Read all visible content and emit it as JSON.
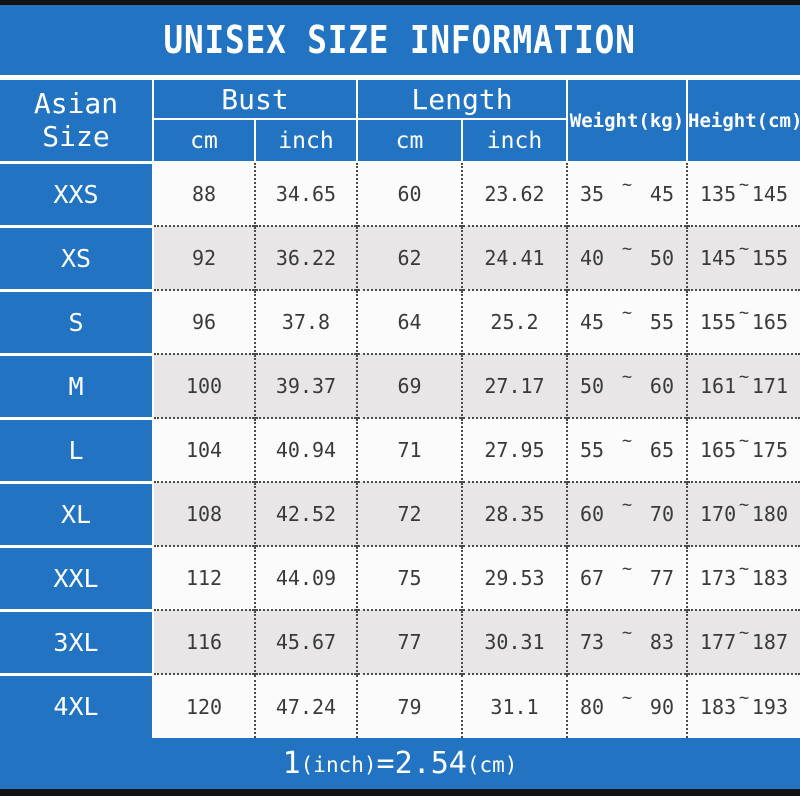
{
  "chart_data": {
    "type": "table",
    "title": "UNISEX SIZE INFORMATION",
    "header": {
      "asian_size": "Asian Size",
      "bust": "Bust",
      "length": "Length",
      "cm": "cm",
      "inch": "inch",
      "weight_kg": "Weight(kg)",
      "height_cm": "Height(cm)"
    },
    "range_separator": "~",
    "rows": [
      {
        "size": "XXS",
        "bust_cm": "88",
        "bust_inch": "34.65",
        "length_cm": "60",
        "length_inch": "23.62",
        "weight_min": "35",
        "weight_max": "45",
        "height_min": "135",
        "height_max": "145"
      },
      {
        "size": "XS",
        "bust_cm": "92",
        "bust_inch": "36.22",
        "length_cm": "62",
        "length_inch": "24.41",
        "weight_min": "40",
        "weight_max": "50",
        "height_min": "145",
        "height_max": "155"
      },
      {
        "size": "S",
        "bust_cm": "96",
        "bust_inch": "37.8",
        "length_cm": "64",
        "length_inch": "25.2",
        "weight_min": "45",
        "weight_max": "55",
        "height_min": "155",
        "height_max": "165"
      },
      {
        "size": "M",
        "bust_cm": "100",
        "bust_inch": "39.37",
        "length_cm": "69",
        "length_inch": "27.17",
        "weight_min": "50",
        "weight_max": "60",
        "height_min": "161",
        "height_max": "171"
      },
      {
        "size": "L",
        "bust_cm": "104",
        "bust_inch": "40.94",
        "length_cm": "71",
        "length_inch": "27.95",
        "weight_min": "55",
        "weight_max": "65",
        "height_min": "165",
        "height_max": "175"
      },
      {
        "size": "XL",
        "bust_cm": "108",
        "bust_inch": "42.52",
        "length_cm": "72",
        "length_inch": "28.35",
        "weight_min": "60",
        "weight_max": "70",
        "height_min": "170",
        "height_max": "180"
      },
      {
        "size": "XXL",
        "bust_cm": "112",
        "bust_inch": "44.09",
        "length_cm": "75",
        "length_inch": "29.53",
        "weight_min": "67",
        "weight_max": "77",
        "height_min": "173",
        "height_max": "183"
      },
      {
        "size": "3XL",
        "bust_cm": "116",
        "bust_inch": "45.67",
        "length_cm": "77",
        "length_inch": "30.31",
        "weight_min": "73",
        "weight_max": "83",
        "height_min": "177",
        "height_max": "187"
      },
      {
        "size": "4XL",
        "bust_cm": "120",
        "bust_inch": "47.24",
        "length_cm": "79",
        "length_inch": "31.1",
        "weight_min": "80",
        "weight_max": "90",
        "height_min": "183",
        "height_max": "193"
      }
    ],
    "footnote": {
      "inch_value": "1",
      "inch_unit": "(inch)",
      "equals": "=",
      "cm_value": "2.54",
      "cm_unit": "(cm)",
      "text": "1(inch)=2.54(cm)"
    }
  },
  "colors": {
    "blue": "#2273c1",
    "row_light": "#fcfbfb",
    "row_dark": "#e8e6e7",
    "bar_black": "#121212",
    "cell_text": "#3a3a3a",
    "header_text": "#ffffff"
  }
}
